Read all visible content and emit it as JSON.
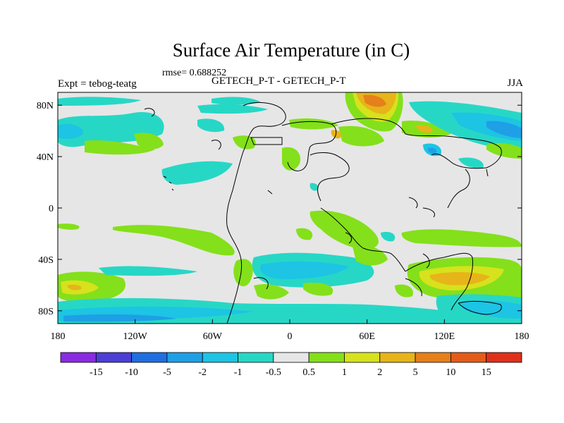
{
  "title": "Surface Air Temperature (in C)",
  "rmse_label": "rmse= 0.688252",
  "left_label": "Expt = tebog-teatg",
  "center_label": "GETECH_P-T - GETECH_P-T",
  "right_label": "JJA",
  "map": {
    "lon_range": [
      -180,
      180
    ],
    "lat_range": [
      -90,
      90
    ],
    "x_ticks": [
      "180",
      "120W",
      "60W",
      "0",
      "60E",
      "120E",
      "180"
    ],
    "y_ticks": [
      "80N",
      "40N",
      "0",
      "40S",
      "80S"
    ]
  },
  "colorbar": {
    "labels": [
      "-15",
      "-10",
      "-5",
      "-2",
      "-1",
      "-0.5",
      "0.5",
      "1",
      "2",
      "5",
      "10",
      "15"
    ],
    "colors": [
      "#8a2be2",
      "#4b3fd6",
      "#1f6fe0",
      "#1f9fe6",
      "#1dc4e4",
      "#27d7c6",
      "#e6e6e6",
      "#84e01a",
      "#d6e21c",
      "#e7b41a",
      "#e5801a",
      "#e45c1a",
      "#e0301a"
    ]
  }
}
